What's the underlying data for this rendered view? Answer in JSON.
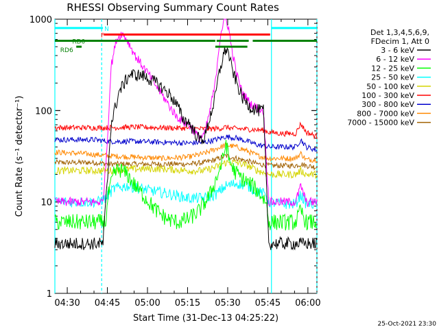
{
  "chart_data": {
    "type": "line",
    "title": "RHESSI Observing Summary Count Rates",
    "xlabel": "Start Time (31-Dec-13 04:25:22)",
    "ylabel": "Count Rate (s⁻¹ detector⁻¹)",
    "y_scale": "log",
    "ylim": [
      1,
      1000
    ],
    "xlim_minutes": [
      0,
      98
    ],
    "y_tick_labels": [
      "1",
      "10",
      "100",
      "1000"
    ],
    "y_tick_values": [
      1,
      10,
      100,
      1000
    ],
    "x_tick_labels": [
      "04:30",
      "04:45",
      "05:00",
      "05:15",
      "05:30",
      "05:45",
      "06:00"
    ],
    "x_tick_minutes": [
      4.633,
      19.633,
      34.633,
      49.633,
      64.633,
      79.633,
      94.633
    ],
    "legend_header": [
      "Det 1,3,4,5,6,9,",
      "FDecim 1, Att 0"
    ],
    "series": [
      {
        "name": "3 - 6 keV",
        "color": "#000000",
        "x": [
          0,
          5,
          9,
          15,
          18,
          19.5,
          21,
          24,
          28,
          33,
          38,
          43,
          46,
          48,
          50,
          52,
          54,
          56,
          58,
          60,
          61,
          62,
          63,
          64,
          65,
          66,
          68,
          70,
          73,
          76,
          78,
          80,
          85,
          92,
          98
        ],
        "y": [
          3.5,
          3.5,
          3.5,
          3.5,
          3.5,
          15,
          70,
          160,
          250,
          240,
          200,
          150,
          110,
          80,
          75,
          60,
          48,
          50,
          85,
          140,
          220,
          300,
          400,
          480,
          420,
          300,
          200,
          140,
          110,
          100,
          100,
          3.5,
          3.5,
          3.5,
          3.5
        ]
      },
      {
        "name": "6 - 12 keV",
        "color": "#ff00ff",
        "x": [
          0,
          5,
          9,
          15,
          18,
          19.5,
          21,
          23,
          25,
          27,
          30,
          35,
          40,
          45,
          48,
          50,
          52,
          54,
          56,
          58,
          60,
          61,
          62,
          63,
          64,
          65,
          66,
          68,
          70,
          73,
          76,
          78,
          80,
          85,
          90,
          92,
          94,
          98
        ],
        "y": [
          10,
          10,
          10,
          10,
          10,
          40,
          300,
          600,
          700,
          600,
          400,
          250,
          150,
          90,
          75,
          70,
          60,
          50,
          55,
          100,
          200,
          400,
          700,
          900,
          1000,
          800,
          500,
          250,
          160,
          120,
          105,
          100,
          10,
          10,
          10,
          15,
          10,
          10
        ]
      },
      {
        "name": "12 - 25 keV",
        "color": "#00ff00",
        "x": [
          0,
          9,
          16,
          19,
          20,
          22,
          24,
          27,
          30,
          34,
          38,
          42,
          46,
          50,
          54,
          58,
          61,
          63,
          64,
          65,
          67,
          70,
          74,
          77,
          79,
          80,
          85,
          90,
          92,
          94,
          98
        ],
        "y": [
          6,
          6,
          6,
          6,
          12,
          20,
          23,
          20,
          15,
          11,
          8,
          6.5,
          6,
          6.5,
          8,
          12,
          20,
          30,
          45,
          30,
          22,
          18,
          15,
          12,
          10,
          6,
          6,
          6,
          8,
          6,
          6
        ]
      },
      {
        "name": "25 - 50 keV",
        "color": "#00ffff",
        "x": [
          0,
          9,
          16,
          19,
          22,
          27,
          32,
          38,
          44,
          50,
          56,
          60,
          64,
          68,
          72,
          76,
          79,
          80,
          85,
          90,
          92,
          94,
          98
        ],
        "y": [
          10,
          10,
          10,
          11,
          14,
          15,
          14,
          13,
          12,
          11,
          11,
          12,
          15,
          16,
          15,
          13,
          12,
          10,
          9.5,
          9.5,
          12,
          9.5,
          9.5
        ]
      },
      {
        "name": "50 - 100 keV",
        "color": "#d4d400",
        "x": [
          0,
          9,
          15,
          20,
          30,
          40,
          50,
          56,
          60,
          64,
          68,
          72,
          76,
          80,
          85,
          90,
          92,
          94,
          98
        ],
        "y": [
          22,
          22,
          22,
          22,
          23,
          23,
          22,
          22,
          24,
          27,
          27,
          25,
          22,
          20,
          20,
          20,
          22,
          20,
          20
        ]
      },
      {
        "name": "100 - 300 keV",
        "color": "#ff0000",
        "x": [
          0,
          9,
          15,
          20,
          30,
          40,
          50,
          54,
          58,
          62,
          64,
          66,
          70,
          74,
          78,
          80,
          85,
          90,
          92,
          94,
          98
        ],
        "y": [
          65,
          65,
          65,
          65,
          66,
          65,
          64,
          63,
          63,
          64,
          66,
          64,
          63,
          62,
          61,
          58,
          56,
          56,
          72,
          58,
          52
        ]
      },
      {
        "name": "300 - 800 keV",
        "color": "#0000cc",
        "x": [
          0,
          9,
          15,
          20,
          30,
          40,
          50,
          56,
          60,
          64,
          68,
          72,
          76,
          80,
          85,
          90,
          92,
          94,
          98
        ],
        "y": [
          48,
          48,
          48,
          46,
          46,
          45,
          44,
          45,
          48,
          52,
          50,
          46,
          42,
          40,
          40,
          40,
          48,
          40,
          37
        ]
      },
      {
        "name": "800 - 7000 keV",
        "color": "#ff8800",
        "x": [
          0,
          9,
          15,
          20,
          30,
          40,
          50,
          56,
          60,
          64,
          68,
          72,
          76,
          80,
          85,
          90,
          92,
          94,
          98
        ],
        "y": [
          35,
          34,
          33,
          32,
          31,
          30,
          31,
          34,
          38,
          42,
          40,
          36,
          32,
          30,
          30,
          30,
          34,
          29,
          29
        ]
      },
      {
        "name": "7000 - 15000 keV",
        "color": "#a06000",
        "x": [
          0,
          9,
          15,
          20,
          30,
          40,
          50,
          56,
          60,
          64,
          68,
          72,
          76,
          80,
          85,
          90,
          92,
          94,
          98
        ],
        "y": [
          27,
          27,
          27,
          26,
          26,
          26,
          26,
          27,
          29,
          32,
          30,
          28,
          26,
          25,
          25,
          25,
          26,
          25,
          24
        ]
      }
    ],
    "flag_bars": [
      {
        "label": "N",
        "color": "#00ffff",
        "row_value": 800,
        "segments": [
          [
            0,
            18
          ],
          [
            81,
            98
          ]
        ]
      },
      {
        "label": "F",
        "color": "#ff0000",
        "row_value": 680,
        "segments": [
          [
            18.3,
            80.5
          ]
        ]
      },
      {
        "label": "RD0",
        "color": "#008000",
        "row_value": 580,
        "segments": [
          [
            0,
            60
          ],
          [
            60.5,
            72.5
          ],
          [
            74,
            98
          ]
        ]
      },
      {
        "label": "RD6",
        "color": "#008000",
        "row_value": 500,
        "segments": [
          [
            8,
            10
          ],
          [
            60,
            72
          ]
        ]
      }
    ],
    "vertical_lines": [
      {
        "minute": 0,
        "style": "solid",
        "color": "#00ffff"
      },
      {
        "minute": 17.5,
        "style": "dashed",
        "color": "#00ffff"
      },
      {
        "minute": 81,
        "style": "solid",
        "color": "#00ffff"
      },
      {
        "minute": 98,
        "style": "dashed",
        "color": "#00ffff"
      }
    ],
    "footer_date": "25-Oct-2021 23:30"
  }
}
